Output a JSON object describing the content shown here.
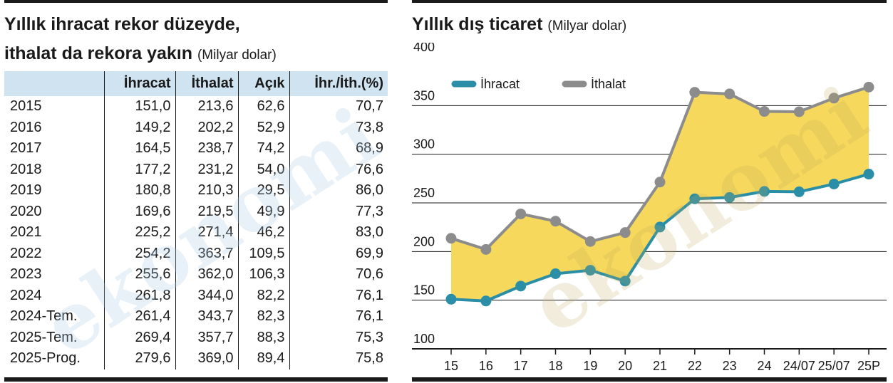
{
  "left": {
    "title_line1": "Yıllık ihracat rekor düzeyde,",
    "title_line2": "ithalat da rekora yakın",
    "unit": "(Milyar dolar)",
    "headers": [
      "",
      "İhracat",
      "İthalat",
      "Açık",
      "İhr./İth.(%)"
    ],
    "rows": [
      [
        "2015",
        "151,0",
        "213,6",
        "62,6",
        "70,7"
      ],
      [
        "2016",
        "149,2",
        "202,2",
        "52,9",
        "73,8"
      ],
      [
        "2017",
        "164,5",
        "238,7",
        "74,2",
        "68,9"
      ],
      [
        "2018",
        "177,2",
        "231,2",
        "54,0",
        "76,6"
      ],
      [
        "2019",
        "180,8",
        "210,3",
        "29,5",
        "86,0"
      ],
      [
        "2020",
        "169,6",
        "219,5",
        "49,9",
        "77,3"
      ],
      [
        "2021",
        "225,2",
        "271,4",
        "46,2",
        "83,0"
      ],
      [
        "2022",
        "254,2",
        "363,7",
        "109,5",
        "69,9"
      ],
      [
        "2023",
        "255,6",
        "362,0",
        "106,3",
        "70,6"
      ],
      [
        "2024",
        "261,8",
        "344,0",
        "82,2",
        "76,1"
      ],
      [
        "2024-Tem.",
        "261,4",
        "343,7",
        "82,3",
        "76,1"
      ],
      [
        "2025-Tem.",
        "269,4",
        "357,7",
        "88,3",
        "75,3"
      ],
      [
        "2025-Prog.",
        "279,6",
        "369,0",
        "89,4",
        "75,8"
      ]
    ]
  },
  "right": {
    "title": "Yıllık dış ticaret",
    "unit": "(Milyar dolar)"
  },
  "watermark_text": "ekonomi",
  "chart_data": {
    "type": "line",
    "categories": [
      "15",
      "16",
      "17",
      "18",
      "19",
      "20",
      "21",
      "22",
      "23",
      "24",
      "24/07",
      "25/07",
      "25P"
    ],
    "series": [
      {
        "name": "İhracat",
        "color": "#2a8fa6",
        "values": [
          151.0,
          149.2,
          164.5,
          177.2,
          180.8,
          169.6,
          225.2,
          254.2,
          255.6,
          261.8,
          261.4,
          269.4,
          279.6
        ]
      },
      {
        "name": "İthalat",
        "color": "#8c8c8c",
        "values": [
          213.6,
          202.2,
          238.7,
          231.2,
          210.3,
          219.5,
          271.4,
          363.7,
          362.0,
          344.0,
          343.7,
          357.7,
          369.0
        ]
      }
    ],
    "fill_color": "#f6d95c",
    "yticks": [
      100,
      150,
      200,
      250,
      300,
      350,
      400
    ],
    "ylim": [
      100,
      400
    ],
    "grid": true,
    "legend": "top-left"
  }
}
